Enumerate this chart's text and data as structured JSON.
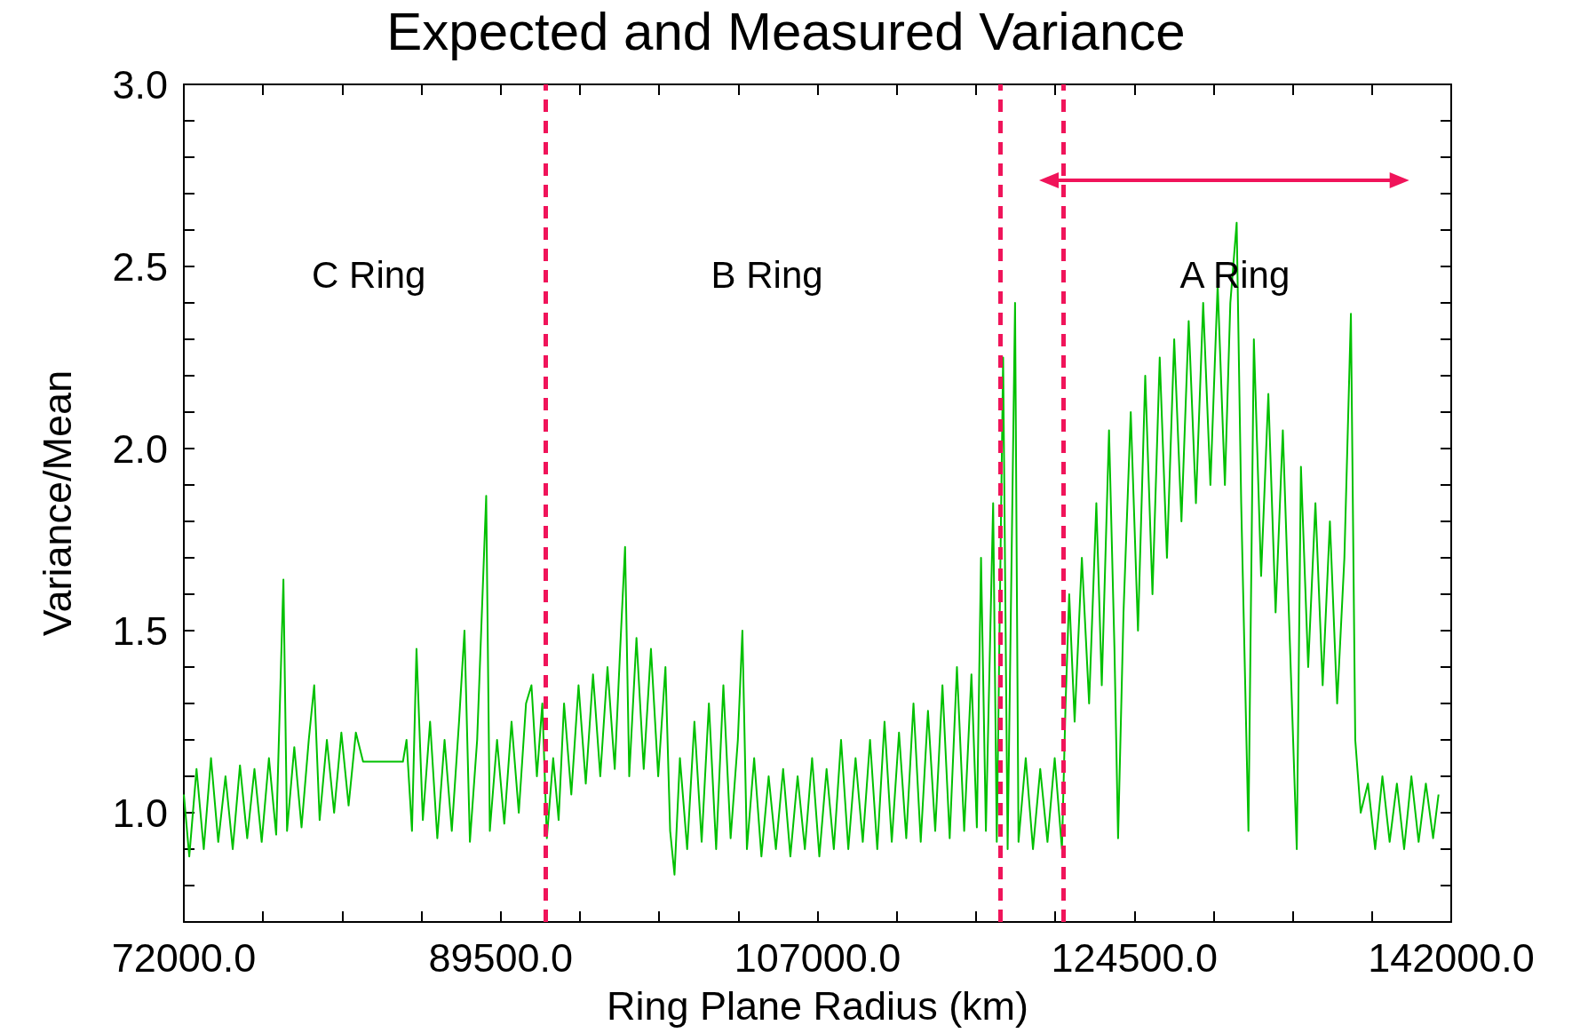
{
  "chart_data": {
    "type": "line",
    "title": "Expected and Measured Variance",
    "xlabel": "Ring Plane Radius (km)",
    "ylabel": "Variance/Mean",
    "xlim": [
      72000,
      142000
    ],
    "xticks": [
      {
        "value": 72000,
        "label": "72000.0"
      },
      {
        "value": 76375,
        "label": null
      },
      {
        "value": 80750,
        "label": null
      },
      {
        "value": 85125,
        "label": null
      },
      {
        "value": 89500,
        "label": "89500.0"
      },
      {
        "value": 93875,
        "label": null
      },
      {
        "value": 98250,
        "label": null
      },
      {
        "value": 102625,
        "label": null
      },
      {
        "value": 107000,
        "label": "107000.0"
      },
      {
        "value": 111375,
        "label": null
      },
      {
        "value": 115750,
        "label": null
      },
      {
        "value": 120125,
        "label": null
      },
      {
        "value": 124500,
        "label": "124500.0"
      },
      {
        "value": 128875,
        "label": null
      },
      {
        "value": 133250,
        "label": null
      },
      {
        "value": 137625,
        "label": null
      },
      {
        "value": 142000,
        "label": "142000.0"
      }
    ],
    "ylim": [
      0.7,
      3.0
    ],
    "yticks": [
      {
        "value": 0.7,
        "label": null
      },
      {
        "value": 0.8,
        "label": null
      },
      {
        "value": 0.9,
        "label": null
      },
      {
        "value": 1.0,
        "label": "1.0"
      },
      {
        "value": 1.1,
        "label": null
      },
      {
        "value": 1.2,
        "label": null
      },
      {
        "value": 1.3,
        "label": null
      },
      {
        "value": 1.4,
        "label": null
      },
      {
        "value": 1.5,
        "label": "1.5"
      },
      {
        "value": 1.6,
        "label": null
      },
      {
        "value": 1.7,
        "label": null
      },
      {
        "value": 1.8,
        "label": null
      },
      {
        "value": 1.9,
        "label": null
      },
      {
        "value": 2.0,
        "label": "2.0"
      },
      {
        "value": 2.1,
        "label": null
      },
      {
        "value": 2.2,
        "label": null
      },
      {
        "value": 2.3,
        "label": null
      },
      {
        "value": 2.4,
        "label": null
      },
      {
        "value": 2.5,
        "label": "2.5"
      },
      {
        "value": 2.6,
        "label": null
      },
      {
        "value": 2.7,
        "label": null
      },
      {
        "value": 2.8,
        "label": null
      },
      {
        "value": 2.9,
        "label": null
      },
      {
        "value": 3.0,
        "label": "3.0"
      }
    ],
    "grid": false,
    "marker": "none",
    "line_style": "solid",
    "x": [
      72000,
      72300,
      72700,
      73100,
      73500,
      73900,
      74300,
      74700,
      75100,
      75500,
      75900,
      76300,
      76700,
      77100,
      77500,
      77700,
      78100,
      78500,
      78900,
      79200,
      79500,
      79900,
      80300,
      80700,
      81100,
      81500,
      81900,
      84100,
      84300,
      84600,
      84850,
      85200,
      85600,
      86000,
      86400,
      86800,
      87200,
      87500,
      87800,
      88200,
      88700,
      88900,
      89300,
      89700,
      90100,
      90500,
      90900,
      91200,
      91500,
      91800,
      92050,
      92400,
      92700,
      93000,
      93400,
      93800,
      94200,
      94600,
      95000,
      95400,
      95800,
      96100,
      96370,
      96600,
      97000,
      97400,
      97800,
      98200,
      98600,
      98860,
      99100,
      99400,
      99800,
      100200,
      100600,
      101000,
      101400,
      101800,
      102200,
      102600,
      102850,
      103100,
      103500,
      103900,
      104300,
      104700,
      105100,
      105500,
      105900,
      106300,
      106700,
      107100,
      107500,
      107900,
      108300,
      108700,
      109100,
      109500,
      109900,
      110300,
      110700,
      111100,
      111500,
      111900,
      112300,
      112700,
      113100,
      113500,
      113900,
      114300,
      114700,
      115100,
      115500,
      115800,
      116030,
      116300,
      116700,
      116900,
      117250,
      117500,
      117910,
      118100,
      118500,
      118900,
      119300,
      119700,
      120100,
      120500,
      120700,
      120900,
      121200,
      121600,
      122000,
      122400,
      122700,
      123100,
      123400,
      123600,
      123900,
      124300,
      124700,
      125100,
      125500,
      125900,
      126300,
      126700,
      127100,
      127500,
      127900,
      128300,
      128700,
      129100,
      129500,
      129800,
      130150,
      130400,
      130800,
      131100,
      131500,
      131900,
      132300,
      132700,
      133100,
      133470,
      133700,
      134100,
      134500,
      134900,
      135300,
      135700,
      136100,
      136460,
      136700,
      137000,
      137400,
      137800,
      138200,
      138600,
      139000,
      139400,
      139800,
      140200,
      140600,
      141000,
      141300
    ],
    "series": [
      {
        "color": "#00c000",
        "values": [
          1.05,
          0.88,
          1.12,
          0.9,
          1.15,
          0.92,
          1.1,
          0.9,
          1.13,
          0.93,
          1.12,
          0.92,
          1.15,
          0.94,
          1.64,
          0.95,
          1.18,
          0.96,
          1.2,
          1.35,
          0.98,
          1.2,
          1.0,
          1.22,
          1.02,
          1.22,
          1.14,
          1.14,
          1.2,
          0.95,
          1.45,
          0.98,
          1.25,
          0.93,
          1.2,
          0.95,
          1.25,
          1.5,
          0.92,
          1.2,
          1.87,
          0.95,
          1.2,
          0.97,
          1.25,
          1.0,
          1.3,
          1.35,
          1.1,
          1.3,
          0.93,
          1.15,
          0.98,
          1.3,
          1.05,
          1.35,
          1.08,
          1.38,
          1.1,
          1.4,
          1.12,
          1.45,
          1.73,
          1.1,
          1.48,
          1.12,
          1.45,
          1.1,
          1.4,
          0.95,
          0.83,
          1.15,
          0.9,
          1.25,
          0.92,
          1.3,
          0.9,
          1.35,
          0.93,
          1.2,
          1.5,
          0.9,
          1.15,
          0.88,
          1.1,
          0.9,
          1.12,
          0.88,
          1.1,
          0.9,
          1.15,
          0.88,
          1.12,
          0.9,
          1.2,
          0.9,
          1.15,
          0.92,
          1.2,
          0.9,
          1.25,
          0.92,
          1.22,
          0.93,
          1.3,
          0.92,
          1.28,
          0.95,
          1.35,
          0.93,
          1.4,
          0.95,
          1.38,
          0.96,
          1.7,
          0.95,
          1.85,
          0.92,
          2.25,
          0.9,
          2.4,
          0.92,
          1.15,
          0.9,
          1.12,
          0.92,
          1.15,
          0.9,
          1.3,
          1.6,
          1.25,
          1.7,
          1.3,
          1.85,
          1.35,
          2.05,
          1.45,
          0.93,
          1.55,
          2.1,
          1.5,
          2.2,
          1.6,
          2.25,
          1.7,
          2.3,
          1.8,
          2.35,
          1.85,
          2.4,
          1.9,
          2.45,
          1.9,
          2.4,
          2.62,
          1.85,
          0.95,
          2.3,
          1.65,
          2.15,
          1.55,
          2.05,
          1.45,
          0.9,
          1.95,
          1.4,
          1.85,
          1.35,
          1.8,
          1.3,
          1.7,
          2.37,
          1.2,
          1.0,
          1.08,
          0.9,
          1.1,
          0.92,
          1.08,
          0.9,
          1.1,
          0.92,
          1.08,
          0.93,
          1.05
        ]
      }
    ],
    "ref_lines": [
      {
        "axis": "x",
        "value": 92000,
        "color": "#f0145a",
        "line_style": "dashed"
      },
      {
        "axis": "x",
        "value": 117100,
        "color": "#f0145a",
        "line_style": "dashed"
      },
      {
        "axis": "x",
        "value": 120600,
        "color": "#f0145a",
        "line_style": "dashed"
      }
    ],
    "annotations": [
      "C Ring",
      "B Ring",
      "A Ring"
    ]
  }
}
